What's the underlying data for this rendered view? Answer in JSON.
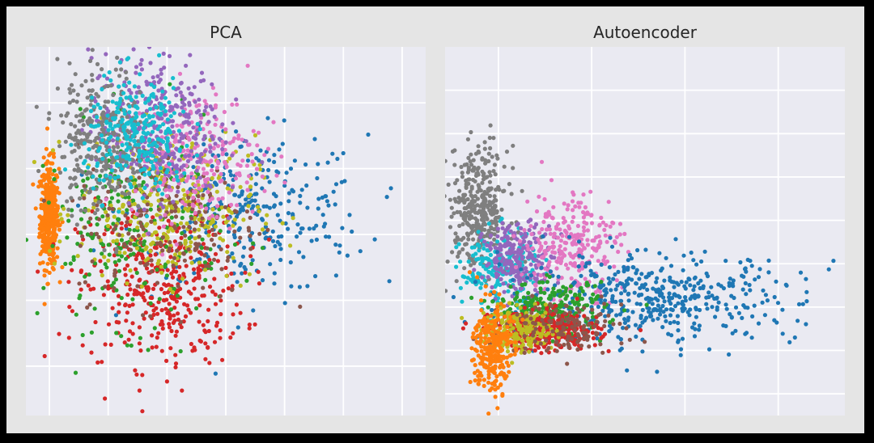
{
  "figure": {
    "background": "#e5e5e5",
    "outer_border": "#000000"
  },
  "palette": {
    "0": "#1f77b4",
    "1": "#ff7f0e",
    "2": "#2ca02c",
    "3": "#d62728",
    "4": "#9467bd",
    "5": "#8c564b",
    "6": "#e377c2",
    "7": "#7f7f7f",
    "8": "#bcbd22",
    "9": "#17becf"
  },
  "chart_data": [
    {
      "type": "scatter",
      "title": "PCA",
      "xlabel": "",
      "ylabel": "",
      "xlim": [
        -4.2,
        2.6
      ],
      "ylim": [
        -2.75,
        2.85
      ],
      "grid": true,
      "legend": false,
      "axes_facecolor": "#eaeaf2",
      "x_gridlines": [
        -3.8,
        -2.8,
        -1.8,
        -0.8,
        0.2,
        1.2,
        2.2
      ],
      "y_gridlines": [
        -2,
        -1,
        0,
        1,
        2
      ],
      "clusters": [
        {
          "class": "1",
          "n": 380,
          "center": [
            -3.8,
            0.3
          ],
          "spread": [
            0.08,
            0.4
          ]
        },
        {
          "class": "0",
          "n": 310,
          "center": [
            -0.4,
            0.3
          ],
          "spread": [
            1.0,
            0.6
          ]
        },
        {
          "class": "3",
          "n": 380,
          "center": [
            -1.9,
            -0.8
          ],
          "spread": [
            0.7,
            0.6
          ]
        },
        {
          "class": "2",
          "n": 260,
          "center": [
            -2.4,
            0.1
          ],
          "spread": [
            0.75,
            0.75
          ]
        },
        {
          "class": "8",
          "n": 310,
          "center": [
            -1.8,
            0.4
          ],
          "spread": [
            0.75,
            0.55
          ]
        },
        {
          "class": "5",
          "n": 200,
          "center": [
            -1.8,
            0.2
          ],
          "spread": [
            0.8,
            0.6
          ]
        },
        {
          "class": "6",
          "n": 240,
          "center": [
            -1.3,
            1.2
          ],
          "spread": [
            0.55,
            0.5
          ]
        },
        {
          "class": "4",
          "n": 340,
          "center": [
            -2.0,
            1.65
          ],
          "spread": [
            0.55,
            0.55
          ]
        },
        {
          "class": "7",
          "n": 320,
          "center": [
            -2.9,
            1.45
          ],
          "spread": [
            0.38,
            0.55
          ]
        },
        {
          "class": "9",
          "n": 270,
          "center": [
            -2.3,
            1.5
          ],
          "spread": [
            0.45,
            0.45
          ]
        }
      ]
    },
    {
      "type": "scatter",
      "title": "Autoencoder",
      "xlabel": "",
      "ylabel": "",
      "xlim": [
        -1.0,
        2.0
      ],
      "ylim": [
        -0.8,
        2.6
      ],
      "grid": true,
      "legend": false,
      "axes_facecolor": "#eaeaf2",
      "x_gridlines": [
        -0.6,
        0.1,
        0.8,
        1.5
      ],
      "y_gridlines": [
        -0.6,
        -0.2,
        0.2,
        0.6,
        1.0,
        1.4,
        1.8,
        2.2
      ],
      "clusters": [
        {
          "class": "7",
          "n": 360,
          "center": [
            -0.75,
            1.1
          ],
          "spread": [
            0.11,
            0.28
          ]
        },
        {
          "class": "9",
          "n": 200,
          "center": [
            -0.6,
            0.55
          ],
          "spread": [
            0.14,
            0.17
          ]
        },
        {
          "class": "4",
          "n": 230,
          "center": [
            -0.45,
            0.65
          ],
          "spread": [
            0.13,
            0.16
          ]
        },
        {
          "class": "6",
          "n": 260,
          "center": [
            -0.05,
            0.78
          ],
          "spread": [
            0.18,
            0.25
          ]
        },
        {
          "class": "0",
          "n": 460,
          "center": [
            0.55,
            0.28
          ],
          "spread": [
            0.55,
            0.2
          ]
        },
        {
          "class": "2",
          "n": 230,
          "center": [
            -0.2,
            0.18
          ],
          "spread": [
            0.2,
            0.12
          ]
        },
        {
          "class": "3",
          "n": 340,
          "center": [
            -0.25,
            -0.02
          ],
          "spread": [
            0.2,
            0.09
          ]
        },
        {
          "class": "8",
          "n": 200,
          "center": [
            -0.45,
            -0.02
          ],
          "spread": [
            0.14,
            0.1
          ]
        },
        {
          "class": "5",
          "n": 130,
          "center": [
            -0.1,
            0.02
          ],
          "spread": [
            0.22,
            0.12
          ]
        },
        {
          "class": "1",
          "n": 270,
          "center": [
            -0.65,
            -0.18
          ],
          "spread": [
            0.07,
            0.22
          ]
        }
      ]
    }
  ]
}
